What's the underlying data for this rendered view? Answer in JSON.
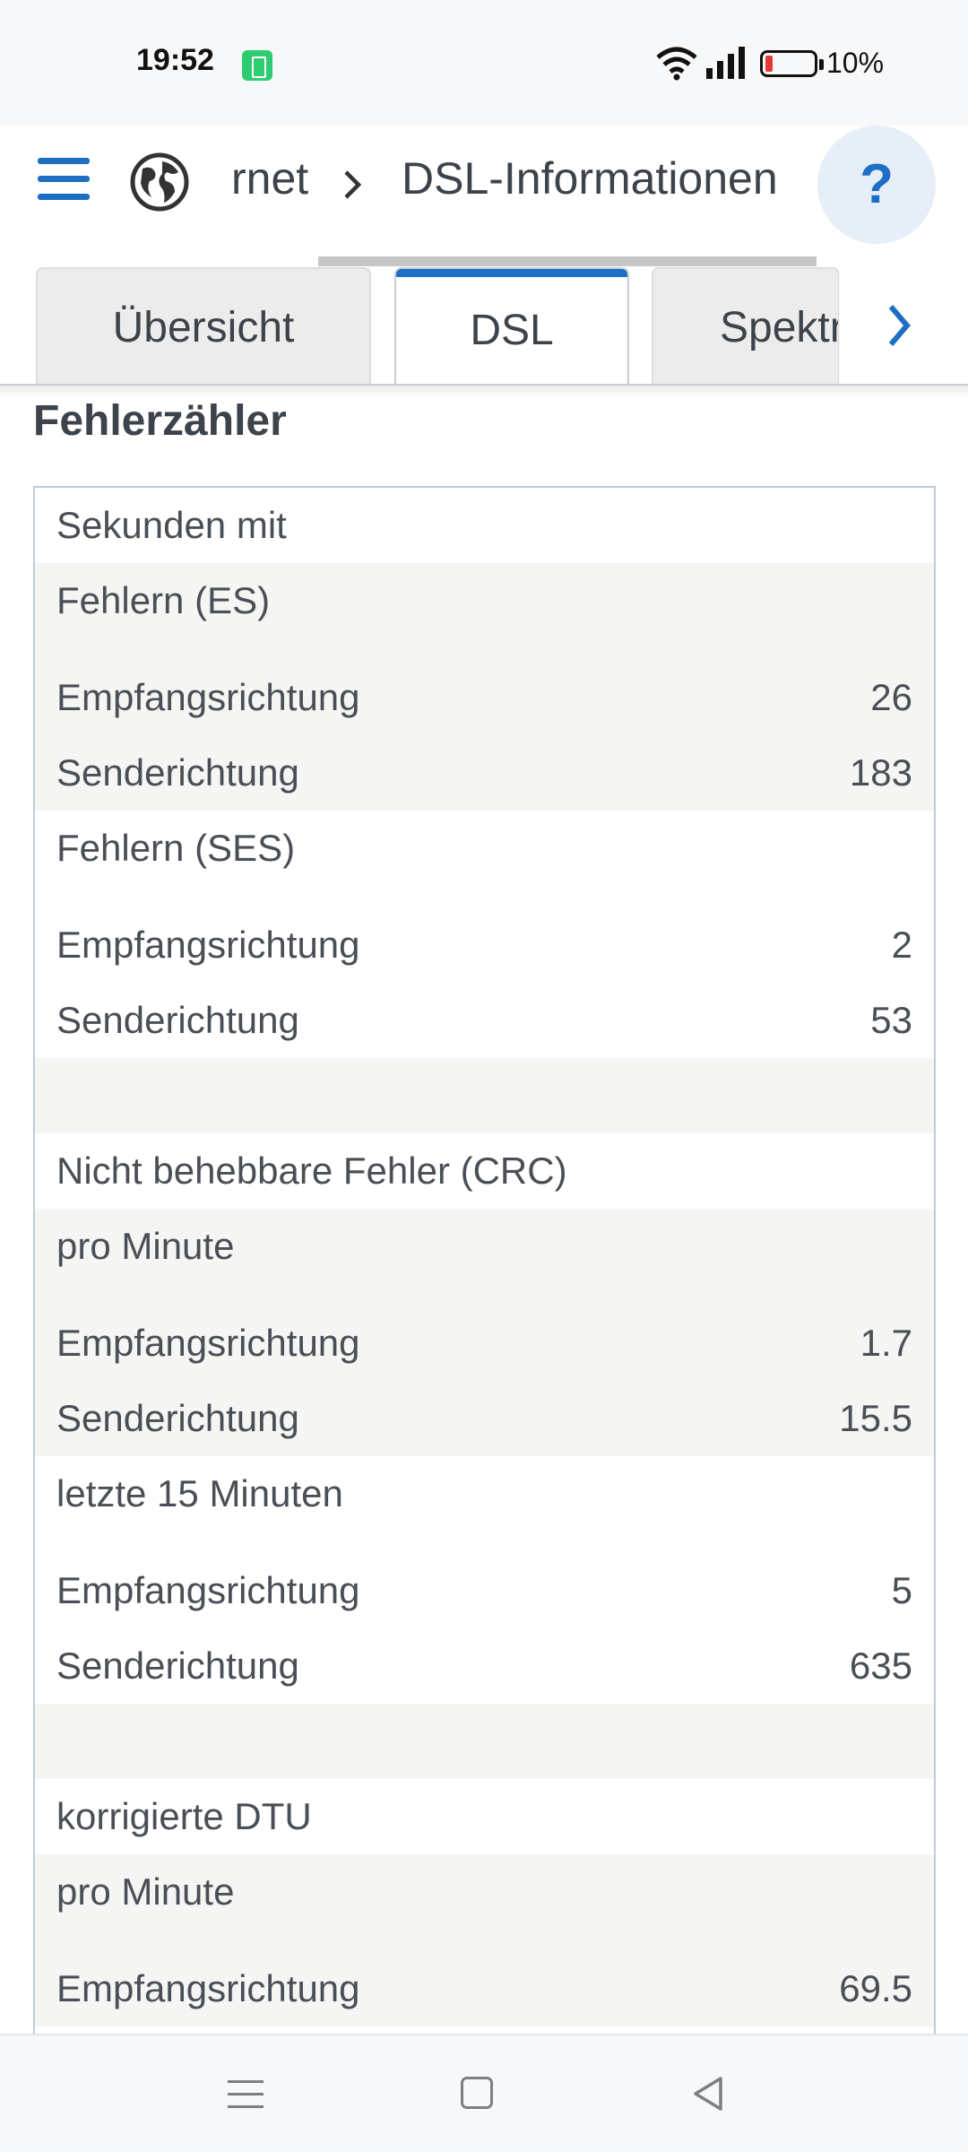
{
  "status_bar": {
    "time": "19:52",
    "battery_percent": "10%"
  },
  "header": {
    "breadcrumb_parent": "rnet",
    "breadcrumb_current": "DSL-Informationen",
    "help_label": "?"
  },
  "tabs": [
    {
      "label": "Übersicht",
      "active": false
    },
    {
      "label": "DSL",
      "active": true
    },
    {
      "label": "Spektrum",
      "active": false
    }
  ],
  "section": {
    "title": "Fehlerzähler"
  },
  "rows": [
    {
      "label": "Sekunden mit",
      "value": "",
      "shade": false,
      "tall": false
    },
    {
      "label": "Fehlern (ES)",
      "value": "",
      "shade": true,
      "tall": true
    },
    {
      "label": "Empfangsrichtung",
      "value": "26",
      "shade": true,
      "tall": false
    },
    {
      "label": "Senderichtung",
      "value": "183",
      "shade": true,
      "tall": false
    },
    {
      "label": "Fehlern (SES)",
      "value": "",
      "shade": false,
      "tall": true
    },
    {
      "label": "Empfangsrichtung",
      "value": "2",
      "shade": false,
      "tall": false
    },
    {
      "label": "Senderichtung",
      "value": "53",
      "shade": false,
      "tall": false
    },
    {
      "label": "",
      "value": "",
      "shade": true,
      "tall": false
    },
    {
      "label": "Nicht behebbare Fehler (CRC)",
      "value": "",
      "shade": false,
      "tall": false
    },
    {
      "label": "pro Minute",
      "value": "",
      "shade": true,
      "tall": true
    },
    {
      "label": "Empfangsrichtung",
      "value": "1.7",
      "shade": true,
      "tall": false
    },
    {
      "label": "Senderichtung",
      "value": "15.5",
      "shade": true,
      "tall": false
    },
    {
      "label": "letzte 15 Minuten",
      "value": "",
      "shade": false,
      "tall": true
    },
    {
      "label": "Empfangsrichtung",
      "value": "5",
      "shade": false,
      "tall": false
    },
    {
      "label": "Senderichtung",
      "value": "635",
      "shade": false,
      "tall": false
    },
    {
      "label": "",
      "value": "",
      "shade": true,
      "tall": false
    },
    {
      "label": "korrigierte DTU",
      "value": "",
      "shade": false,
      "tall": false
    },
    {
      "label": "pro Minute",
      "value": "",
      "shade": true,
      "tall": true
    },
    {
      "label": "Empfangsrichtung",
      "value": "69.5",
      "shade": true,
      "tall": false
    }
  ],
  "icons": {
    "menu": "menu-icon",
    "globe": "globe-icon",
    "chevron": "chevron-right-icon",
    "next": "chevron-right-icon",
    "wifi": "wifi-icon",
    "cell": "cellular-signal-icon",
    "battery": "battery-icon"
  },
  "colors": {
    "accent": "#1d6fc4",
    "row_shade": "#f5f5f4",
    "battery_low": "#e53935"
  }
}
